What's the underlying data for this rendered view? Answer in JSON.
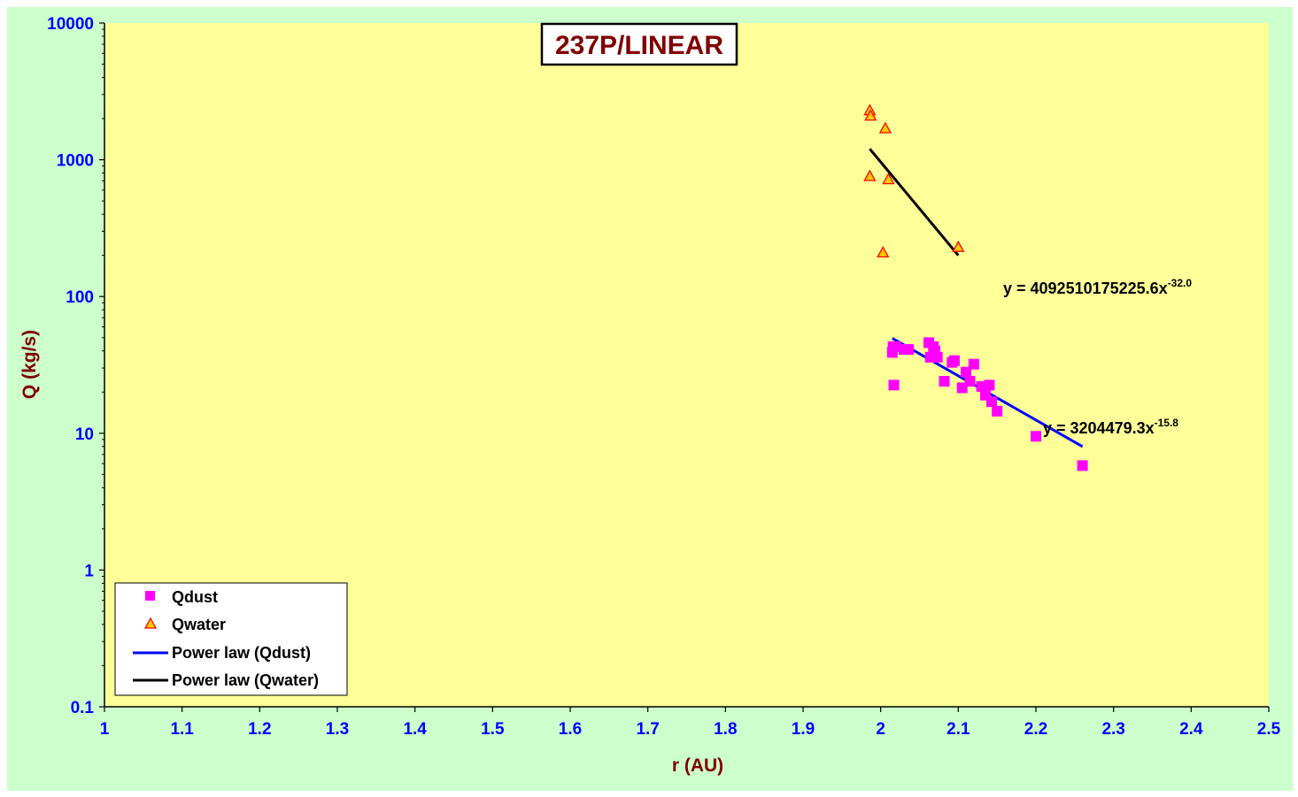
{
  "colors": {
    "outer_bg": "#ccffcc",
    "plot_bg": "#ffff99",
    "dust_marker": "#ff00ff",
    "water_marker_fill": "#ffcc00",
    "water_marker_stroke": "#ff0000",
    "dust_fit": "#0000ff",
    "water_fit": "#000000",
    "tick_text": "#0000ff",
    "title_text": "#800000"
  },
  "chart_data": {
    "type": "scatter",
    "title": "237P/LINEAR",
    "xlabel": "r (AU)",
    "ylabel": "Q (kg/s)",
    "xlim": [
      1,
      2.5
    ],
    "ylim": [
      0.1,
      10000
    ],
    "yscale": "log",
    "grid": false,
    "legend_position": "bottom-left",
    "x_ticks": [
      "1",
      "1.1",
      "1.2",
      "1.3",
      "1.4",
      "1.5",
      "1.6",
      "1.7",
      "1.8",
      "1.9",
      "2",
      "2.1",
      "2.2",
      "2.3",
      "2.4",
      "2.5"
    ],
    "y_ticks": [
      "10000",
      "1000",
      "100",
      "10",
      "1",
      "0.1"
    ],
    "series": [
      {
        "name": "Qdust",
        "marker": "square",
        "x": [
          2.015,
          2.016,
          2.017,
          2.02,
          2.03,
          2.036,
          2.062,
          2.064,
          2.068,
          2.07,
          2.073,
          2.082,
          2.092,
          2.095,
          2.105,
          2.11,
          2.115,
          2.12,
          2.13,
          2.135,
          2.14,
          2.143,
          2.15,
          2.2,
          2.26
        ],
        "y": [
          39,
          43,
          22.5,
          43,
          41,
          41,
          46,
          36,
          43,
          40,
          36,
          24,
          33,
          34,
          21.5,
          28,
          24,
          32,
          22,
          19,
          22.5,
          17,
          14.5,
          9.5,
          5.8
        ]
      },
      {
        "name": "Qwater",
        "marker": "triangle",
        "x": [
          1.986,
          1.987,
          1.986,
          2.003,
          2.006,
          2.01,
          2.1
        ],
        "y": [
          2300,
          2100,
          760,
          210,
          1700,
          720,
          230
        ]
      },
      {
        "name": "Power law (Qdust)",
        "line": true,
        "x": [
          2.015,
          2.26
        ],
        "y": [
          49.5,
          8.0
        ]
      },
      {
        "name": "Power law (Qwater)",
        "line": true,
        "x": [
          1.986,
          2.1
        ],
        "y": [
          1200,
          200
        ]
      }
    ],
    "annotations": [
      {
        "text": "y = 4092510175225.6x",
        "exponent": "-32.0"
      },
      {
        "text": "y = 3204479.3x",
        "exponent": "-15.8"
      }
    ]
  }
}
